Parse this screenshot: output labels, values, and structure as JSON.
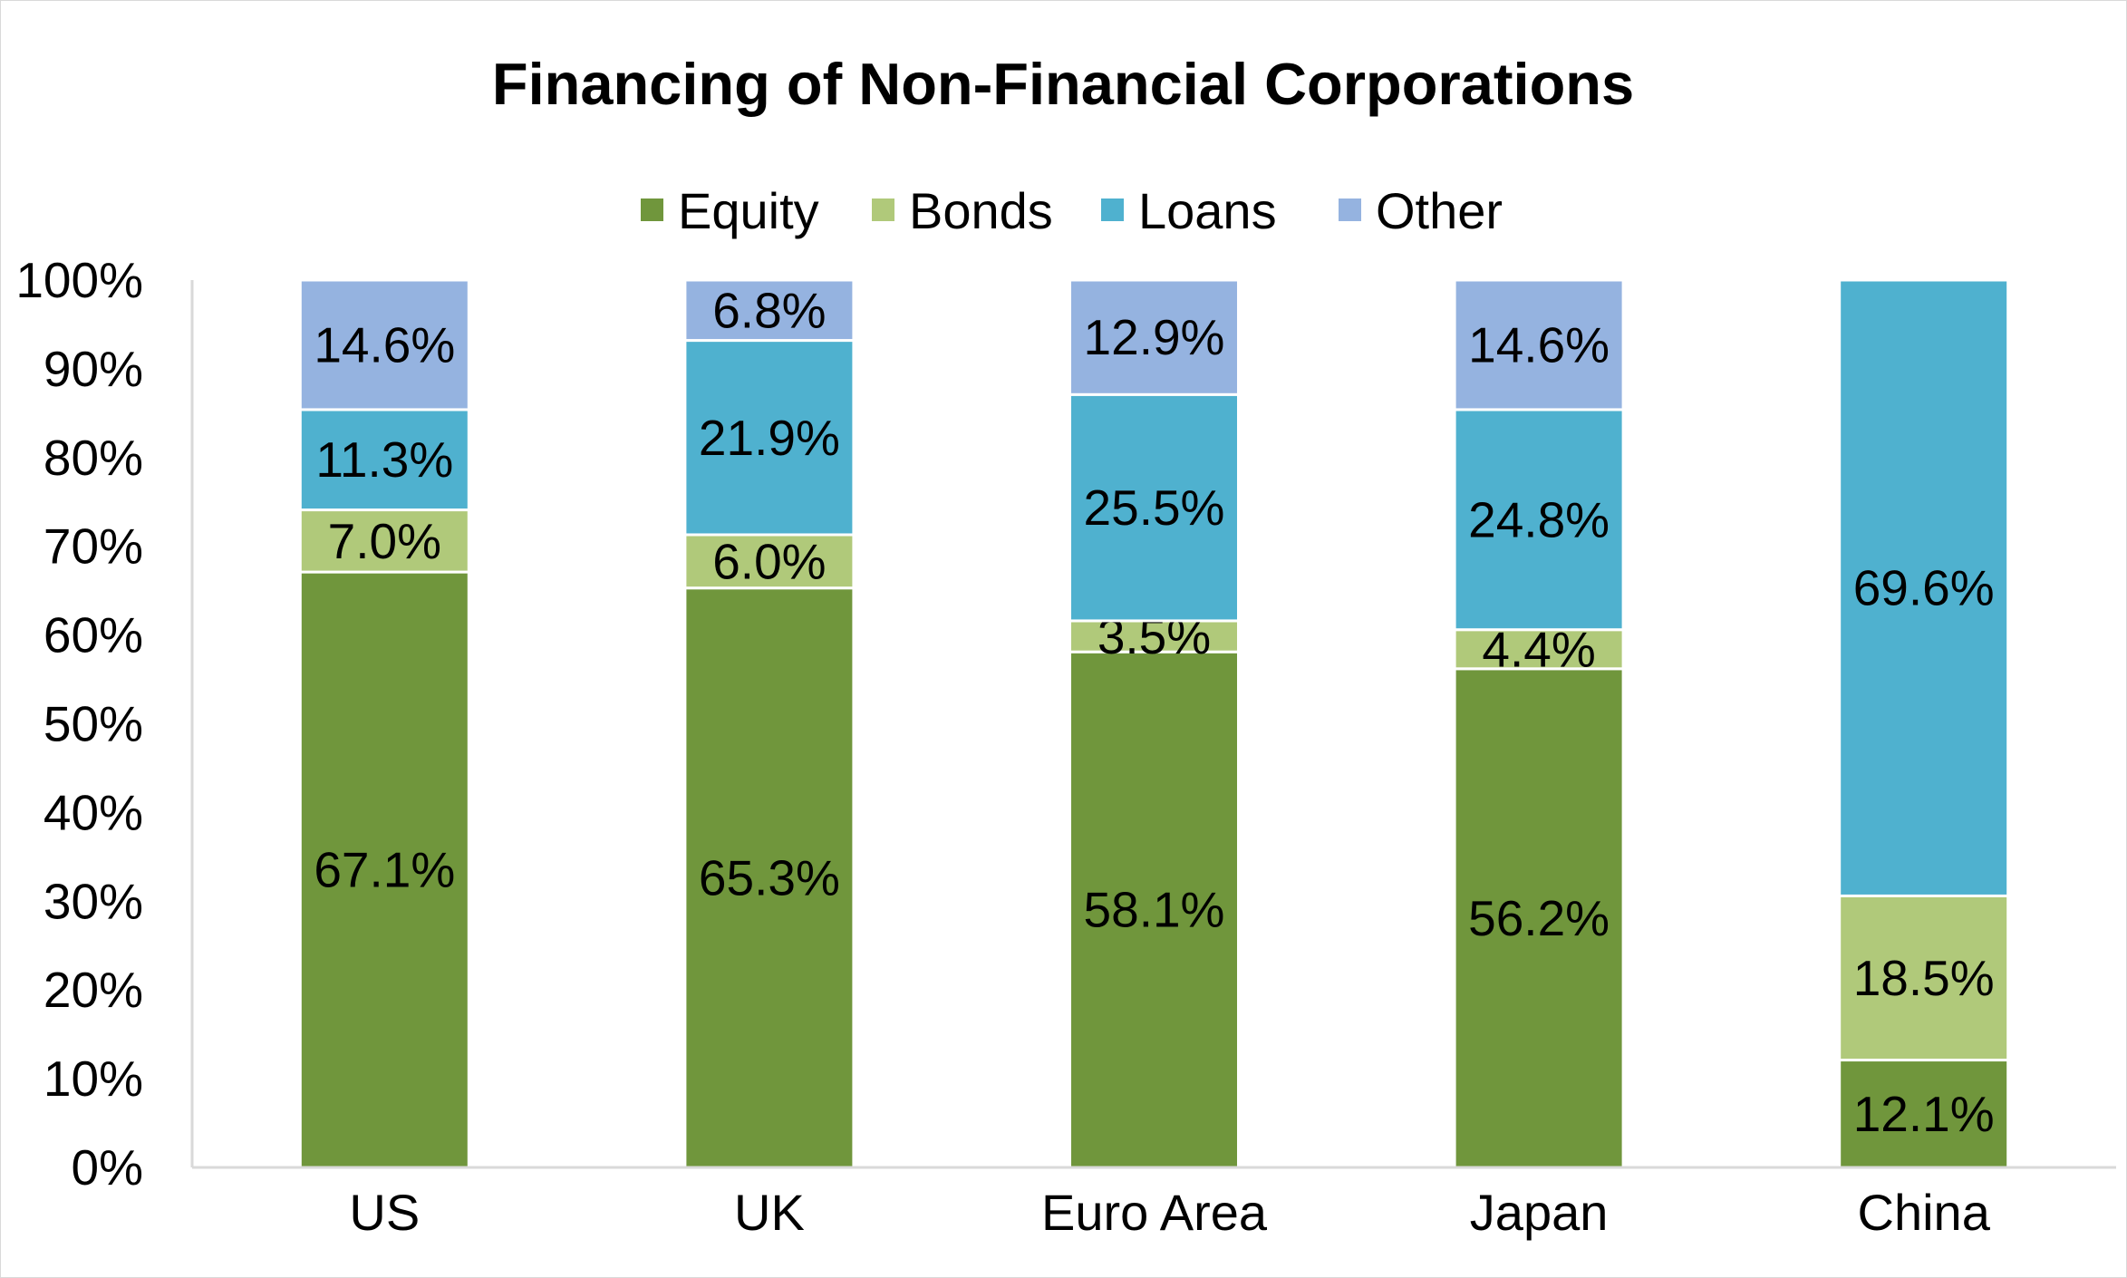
{
  "chart_data": {
    "type": "bar",
    "stacked": true,
    "title": "Financing of Non-Financial Corporations",
    "xlabel": "",
    "ylabel": "",
    "ylim": [
      0,
      100
    ],
    "yticks": [
      "0%",
      "10%",
      "20%",
      "30%",
      "40%",
      "50%",
      "60%",
      "70%",
      "80%",
      "90%",
      "100%"
    ],
    "categories": [
      "US",
      "UK",
      "Euro Area",
      "Japan",
      "China"
    ],
    "series": [
      {
        "name": "Equity",
        "color": "#70963c",
        "values": [
          67.1,
          65.3,
          58.1,
          56.2,
          12.1
        ],
        "labels": [
          "67.1%",
          "65.3%",
          "58.1%",
          "56.2%",
          "12.1%"
        ]
      },
      {
        "name": "Bonds",
        "color": "#b0c97a",
        "values": [
          7.0,
          6.0,
          3.5,
          4.4,
          18.5
        ],
        "labels": [
          "7.0%",
          "6.0%",
          "3.5%",
          "4.4%",
          "18.5%"
        ]
      },
      {
        "name": "Loans",
        "color": "#4fb1cf",
        "values": [
          11.3,
          21.9,
          25.5,
          24.8,
          69.6
        ],
        "labels": [
          "11.3%",
          "21.9%",
          "25.5%",
          "24.8%",
          "69.6%"
        ]
      },
      {
        "name": "Other",
        "color": "#95b3e0",
        "values": [
          14.6,
          6.8,
          12.9,
          14.6,
          0
        ],
        "labels": [
          "14.6%",
          "6.8%",
          "12.9%",
          "14.6%",
          ""
        ]
      }
    ],
    "legend_position": "top",
    "grid": false
  }
}
